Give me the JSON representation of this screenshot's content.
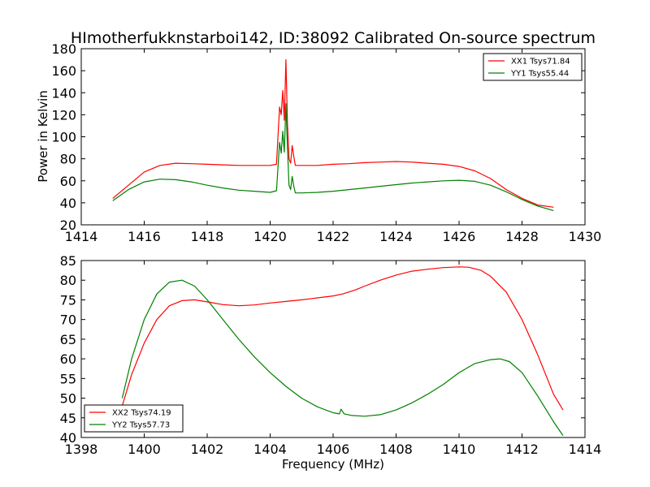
{
  "chart_data": [
    {
      "type": "line",
      "title": "HImotherfukknstarboi142, ID:38092 Calibrated On-source spectrum",
      "xlabel": "",
      "ylabel": "Power in Kelvin",
      "xlim": [
        1414,
        1430
      ],
      "ylim": [
        20,
        180
      ],
      "xticks": [
        "1414",
        "1416",
        "1418",
        "1420",
        "1422",
        "1424",
        "1426",
        "1428",
        "1430"
      ],
      "yticks": [
        "20",
        "40",
        "60",
        "80",
        "100",
        "120",
        "140",
        "160",
        "180"
      ],
      "grid": false,
      "legend": "top-right",
      "series": [
        {
          "name": "XX1 Tsys71.84",
          "color": "#ff0000",
          "x": [
            1415,
            1415.5,
            1416,
            1416.5,
            1417,
            1417.5,
            1418,
            1418.5,
            1419,
            1419.5,
            1420,
            1420.2,
            1420.3,
            1420.35,
            1420.4,
            1420.45,
            1420.5,
            1420.55,
            1420.6,
            1420.65,
            1420.7,
            1420.75,
            1420.8,
            1421,
            1421.5,
            1422,
            1422.5,
            1423,
            1423.5,
            1424,
            1424.5,
            1425,
            1425.5,
            1426,
            1426.5,
            1427,
            1427.5,
            1428,
            1428.5,
            1429
          ],
          "y": [
            44,
            56,
            68,
            74,
            76,
            75.5,
            75,
            74.5,
            74,
            74,
            74,
            75,
            127,
            120,
            142,
            115,
            170,
            112,
            80,
            76,
            92,
            82,
            74,
            74,
            74,
            75,
            75.5,
            76.5,
            77,
            77.5,
            77,
            76,
            75,
            73,
            69,
            62,
            52,
            44,
            38,
            36
          ]
        },
        {
          "name": "YY1 Tsys55.44",
          "color": "#008000",
          "x": [
            1415,
            1415.5,
            1416,
            1416.5,
            1417,
            1417.5,
            1418,
            1418.5,
            1419,
            1419.5,
            1420,
            1420.2,
            1420.3,
            1420.35,
            1420.4,
            1420.45,
            1420.5,
            1420.55,
            1420.6,
            1420.65,
            1420.7,
            1420.75,
            1420.8,
            1421,
            1421.5,
            1422,
            1422.5,
            1423,
            1423.5,
            1424,
            1424.5,
            1425,
            1425.5,
            1426,
            1426.5,
            1427,
            1427.5,
            1428,
            1428.5,
            1429
          ],
          "y": [
            42,
            52,
            59,
            61.5,
            61,
            59,
            56,
            53.5,
            51.5,
            50.5,
            49.5,
            51,
            95,
            85,
            105,
            86,
            130,
            90,
            56,
            52,
            64,
            55,
            49,
            49,
            49.5,
            50.5,
            52,
            53.5,
            55,
            56.5,
            58,
            59,
            60,
            60.5,
            59.5,
            56,
            50,
            43,
            37,
            33
          ]
        }
      ]
    },
    {
      "type": "line",
      "title": "",
      "xlabel": "Frequency (MHz)",
      "ylabel": "",
      "xlim": [
        1398,
        1414
      ],
      "ylim": [
        40,
        85
      ],
      "xticks": [
        "1398",
        "1400",
        "1402",
        "1404",
        "1406",
        "1408",
        "1410",
        "1412",
        "1414"
      ],
      "yticks": [
        "40",
        "45",
        "50",
        "55",
        "60",
        "65",
        "70",
        "75",
        "80",
        "85"
      ],
      "grid": false,
      "legend": "bottom-left",
      "series": [
        {
          "name": "XX2 Tsys74.19",
          "color": "#ff0000",
          "x": [
            1399.3,
            1399.6,
            1400,
            1400.4,
            1400.8,
            1401.2,
            1401.6,
            1402,
            1402.5,
            1403,
            1403.5,
            1404,
            1404.5,
            1405,
            1405.5,
            1406,
            1406.3,
            1406.7,
            1407,
            1407.5,
            1408,
            1408.5,
            1409,
            1409.5,
            1410,
            1410.3,
            1410.7,
            1411,
            1411.5,
            1412,
            1412.5,
            1413,
            1413.3
          ],
          "y": [
            48,
            56,
            64,
            70,
            73.5,
            74.8,
            75,
            74.5,
            73.8,
            73.5,
            73.7,
            74.2,
            74.6,
            75,
            75.5,
            76,
            76.5,
            77.5,
            78.5,
            80,
            81.3,
            82.3,
            82.8,
            83.2,
            83.4,
            83.3,
            82.5,
            81,
            77,
            70,
            61,
            51,
            47
          ]
        },
        {
          "name": "YY2 Tsys57.73",
          "color": "#008000",
          "x": [
            1399.3,
            1399.6,
            1400,
            1400.4,
            1400.8,
            1401.2,
            1401.6,
            1402,
            1402.5,
            1403,
            1403.5,
            1404,
            1404.5,
            1405,
            1405.5,
            1406,
            1406.2,
            1406.25,
            1406.35,
            1406.6,
            1407,
            1407.5,
            1408,
            1408.5,
            1409,
            1409.5,
            1410,
            1410.5,
            1411,
            1411.3,
            1411.6,
            1412,
            1412.5,
            1413,
            1413.3
          ],
          "y": [
            50,
            60,
            70,
            76.5,
            79.5,
            80,
            78.5,
            75,
            70,
            65,
            60.5,
            56.5,
            53,
            50,
            47.8,
            46.3,
            46,
            47.2,
            46,
            45.6,
            45.4,
            45.8,
            47,
            48.8,
            51,
            53.5,
            56.5,
            58.8,
            59.8,
            60,
            59.3,
            56.5,
            50.5,
            44,
            40.5
          ]
        }
      ]
    }
  ]
}
